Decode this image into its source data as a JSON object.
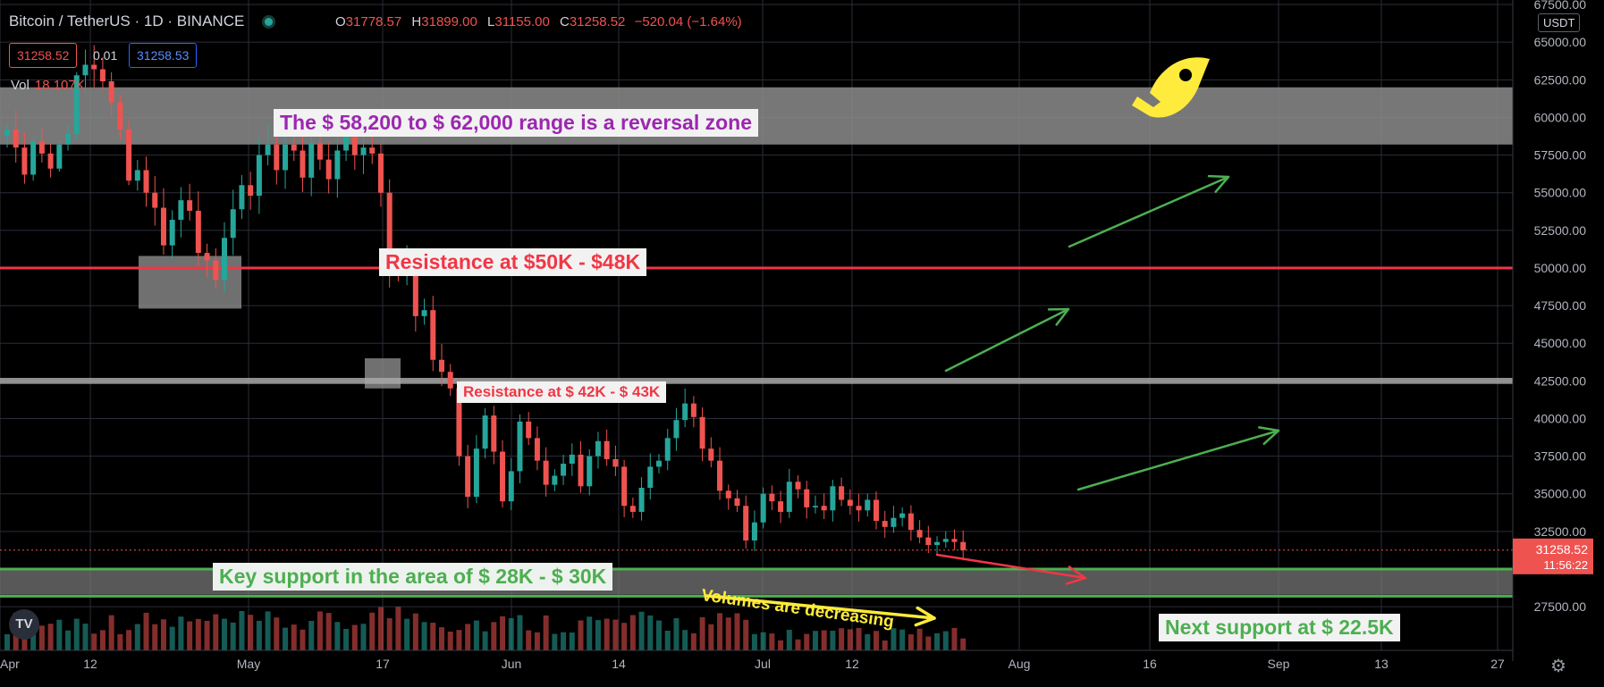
{
  "header": {
    "symbol": "Bitcoin / TetherUS",
    "interval": "1D",
    "exchange": "BINANCE"
  },
  "ohlc": {
    "o_label": "O",
    "o": "31778.57",
    "h_label": "H",
    "h": "31899.00",
    "l_label": "L",
    "l": "31155.00",
    "c_label": "C",
    "c": "31258.52",
    "change": "−520.04 (−1.64%)"
  },
  "prices": {
    "sell": "31258.52",
    "spread": "0.01",
    "buy": "31258.53"
  },
  "volume": {
    "label": "Vol",
    "value": "18.107K"
  },
  "currency": "USDT",
  "tv_logo": "TV",
  "gear_icon": "⚙",
  "annotations": {
    "reversal": "The $ 58,200 to $ 62,000 range is a reversal zone",
    "res50": "Resistance at $50K - $48K",
    "res42": "Resistance at $ 42K - $ 43K",
    "support": "Key support in the area of $ 28K - $ 30K",
    "volumes": "Volumes are decreasing",
    "next": "Next support at $ 22.5K"
  },
  "colors": {
    "up": "#26a69a",
    "down": "#ef5350",
    "grid": "#2a2e39",
    "axis": "#b2b5be",
    "green": "#4caf50",
    "red": "#f23645",
    "yellow": "#ffeb3b",
    "purple": "#9c27b0"
  },
  "chart_data": {
    "type": "candlestick",
    "x_ticks": [
      "Apr",
      "12",
      "May",
      "17",
      "Jun",
      "14",
      "Jul",
      "12",
      "Aug",
      "16",
      "Sep",
      "13",
      "27"
    ],
    "y_ticks": [
      27500,
      30000,
      32500,
      35000,
      37500,
      40000,
      42500,
      45000,
      47500,
      50000,
      52500,
      55000,
      57500,
      60000,
      62500,
      65000,
      67500
    ],
    "y_tick_labels": [
      "27500.00",
      "30000.00",
      "32500.00",
      "35000.00",
      "37500.00",
      "40000.00",
      "42500.00",
      "45000.00",
      "47500.00",
      "50000.00",
      "52500.00",
      "55000.00",
      "57500.00",
      "60000.00",
      "62500.00",
      "65000.00",
      "67500.00"
    ],
    "ylim": [
      24600,
      67800
    ],
    "last_price": "31258.52",
    "countdown": "11:56:22",
    "zones": [
      {
        "name": "reversal zone",
        "low": 58200,
        "high": 62000
      },
      {
        "name": "resistance 50K",
        "level": 50000
      },
      {
        "name": "resistance 42.5K",
        "level": 42500
      },
      {
        "name": "key support",
        "low": 29000,
        "high": 30000
      },
      {
        "name": "support 28K",
        "level": 28200
      }
    ],
    "candles_ohlc_start": [
      [
        58800,
        59600,
        58000,
        59200
      ],
      [
        59200,
        60500,
        57000,
        58000
      ],
      [
        58000,
        59000,
        55600,
        56200
      ],
      [
        56200,
        58600,
        55800,
        58400
      ],
      [
        58400,
        59300,
        57000,
        57600
      ],
      [
        57600,
        58300,
        56000,
        56600
      ],
      [
        56600,
        58500,
        56400,
        58200
      ],
      [
        58200,
        59500,
        57800,
        58900
      ],
      [
        58900,
        63000,
        58500,
        62800
      ],
      [
        62800,
        64500,
        61500,
        63500
      ],
      [
        63500,
        64800,
        62000,
        63200
      ],
      [
        63200,
        64000,
        61800,
        62400
      ],
      [
        62400,
        63000,
        60000,
        61000
      ],
      [
        61000,
        61500,
        58500,
        59200
      ],
      [
        59200,
        59900,
        55500,
        55800
      ]
    ],
    "candles_close_rest": [
      56500,
      55000,
      54000,
      51500,
      53200,
      54500,
      53800,
      51000,
      50500,
      49200,
      52000,
      53900,
      55500,
      54800,
      57500,
      58200,
      56500,
      58200,
      57800,
      56000,
      58300,
      57200,
      55900,
      57800,
      59000,
      57500,
      58000,
      57600,
      55000,
      49800,
      49700,
      50300,
      46800,
      47200,
      43900,
      43100,
      42000,
      37500,
      34800,
      38000,
      40200,
      37800,
      34500,
      36500,
      39800,
      38700,
      37200,
      35600,
      36200,
      37000,
      37600,
      35500,
      37500,
      38500,
      37300,
      36800,
      34200,
      33800,
      35400,
      36800,
      37200,
      38700,
      39900,
      41000,
      40100,
      38000,
      37200,
      35200,
      34700,
      34200,
      31900,
      33100,
      35000,
      34500,
      33800,
      35800,
      35300,
      34100,
      34200,
      33900,
      35500,
      34600,
      34200,
      33900,
      34600,
      33200,
      32800,
      33400,
      33700,
      32600,
      32100,
      31600,
      31800,
      32000,
      31800,
      31258
    ],
    "volume_note": "volume bars shown at bottom, decreasing trend"
  }
}
